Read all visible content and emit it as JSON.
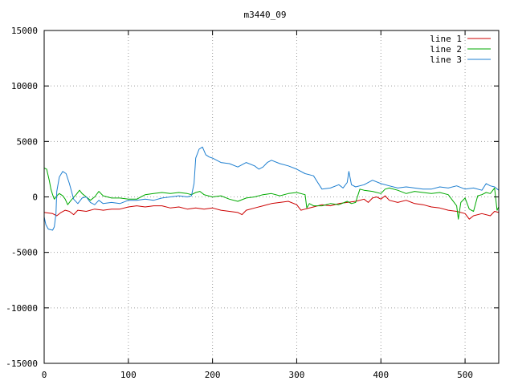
{
  "chart_data": {
    "type": "line",
    "title": "m3440_09",
    "xlabel": "",
    "ylabel": "",
    "xlim": [
      0,
      540
    ],
    "ylim": [
      -15000,
      15000
    ],
    "xticks": [
      0,
      100,
      200,
      300,
      400,
      500
    ],
    "xtick_labels": [
      "0",
      "100",
      "200",
      "300",
      "400",
      "500"
    ],
    "yticks": [
      -15000,
      -10000,
      -5000,
      0,
      5000,
      10000,
      15000
    ],
    "ytick_labels": [
      "-15000",
      "-10000",
      "-5000",
      "0",
      "5000",
      "10000",
      "15000"
    ],
    "grid": true,
    "legend_position": "top-right",
    "series": [
      {
        "name": "line 1",
        "color": "#cc0000",
        "points": [
          [
            0,
            -1400
          ],
          [
            10,
            -1500
          ],
          [
            15,
            -1700
          ],
          [
            20,
            -1400
          ],
          [
            25,
            -1200
          ],
          [
            30,
            -1300
          ],
          [
            35,
            -1600
          ],
          [
            40,
            -1200
          ],
          [
            50,
            -1300
          ],
          [
            60,
            -1100
          ],
          [
            70,
            -1200
          ],
          [
            80,
            -1100
          ],
          [
            90,
            -1100
          ],
          [
            100,
            -900
          ],
          [
            110,
            -800
          ],
          [
            120,
            -900
          ],
          [
            130,
            -800
          ],
          [
            140,
            -800
          ],
          [
            150,
            -1000
          ],
          [
            160,
            -900
          ],
          [
            170,
            -1100
          ],
          [
            180,
            -1000
          ],
          [
            190,
            -1100
          ],
          [
            200,
            -1000
          ],
          [
            210,
            -1200
          ],
          [
            220,
            -1300
          ],
          [
            230,
            -1400
          ],
          [
            235,
            -1600
          ],
          [
            240,
            -1200
          ],
          [
            250,
            -1000
          ],
          [
            260,
            -800
          ],
          [
            270,
            -600
          ],
          [
            280,
            -500
          ],
          [
            290,
            -400
          ],
          [
            300,
            -700
          ],
          [
            305,
            -1200
          ],
          [
            310,
            -1100
          ],
          [
            320,
            -900
          ],
          [
            330,
            -700
          ],
          [
            340,
            -800
          ],
          [
            350,
            -600
          ],
          [
            360,
            -500
          ],
          [
            370,
            -400
          ],
          [
            380,
            -200
          ],
          [
            385,
            -500
          ],
          [
            390,
            -100
          ],
          [
            395,
            0
          ],
          [
            400,
            -200
          ],
          [
            405,
            100
          ],
          [
            410,
            -300
          ],
          [
            420,
            -500
          ],
          [
            430,
            -300
          ],
          [
            440,
            -600
          ],
          [
            450,
            -700
          ],
          [
            460,
            -900
          ],
          [
            470,
            -1000
          ],
          [
            480,
            -1200
          ],
          [
            490,
            -1300
          ],
          [
            500,
            -1500
          ],
          [
            505,
            -2000
          ],
          [
            510,
            -1700
          ],
          [
            520,
            -1500
          ],
          [
            530,
            -1700
          ],
          [
            535,
            -1300
          ],
          [
            540,
            -1400
          ]
        ]
      },
      {
        "name": "line 2",
        "color": "#00aa00",
        "points": [
          [
            0,
            2600
          ],
          [
            3,
            2500
          ],
          [
            6,
            1500
          ],
          [
            8,
            700
          ],
          [
            10,
            200
          ],
          [
            12,
            -200
          ],
          [
            15,
            100
          ],
          [
            18,
            300
          ],
          [
            20,
            200
          ],
          [
            22,
            100
          ],
          [
            25,
            -200
          ],
          [
            28,
            -700
          ],
          [
            32,
            -300
          ],
          [
            38,
            200
          ],
          [
            42,
            600
          ],
          [
            45,
            300
          ],
          [
            50,
            0
          ],
          [
            55,
            -300
          ],
          [
            60,
            0
          ],
          [
            65,
            500
          ],
          [
            70,
            100
          ],
          [
            80,
            -100
          ],
          [
            90,
            -100
          ],
          [
            100,
            -200
          ],
          [
            110,
            -200
          ],
          [
            115,
            0
          ],
          [
            120,
            200
          ],
          [
            130,
            300
          ],
          [
            140,
            400
          ],
          [
            150,
            300
          ],
          [
            160,
            400
          ],
          [
            170,
            300
          ],
          [
            175,
            200
          ],
          [
            180,
            400
          ],
          [
            185,
            500
          ],
          [
            190,
            200
          ],
          [
            200,
            0
          ],
          [
            210,
            100
          ],
          [
            220,
            -200
          ],
          [
            230,
            -400
          ],
          [
            240,
            -100
          ],
          [
            250,
            0
          ],
          [
            260,
            200
          ],
          [
            270,
            300
          ],
          [
            280,
            100
          ],
          [
            290,
            300
          ],
          [
            300,
            400
          ],
          [
            310,
            200
          ],
          [
            312,
            -1000
          ],
          [
            315,
            -600
          ],
          [
            320,
            -800
          ],
          [
            330,
            -800
          ],
          [
            340,
            -600
          ],
          [
            350,
            -700
          ],
          [
            360,
            -400
          ],
          [
            365,
            -600
          ],
          [
            370,
            -500
          ],
          [
            375,
            700
          ],
          [
            380,
            600
          ],
          [
            390,
            500
          ],
          [
            400,
            300
          ],
          [
            405,
            700
          ],
          [
            410,
            800
          ],
          [
            420,
            600
          ],
          [
            430,
            300
          ],
          [
            440,
            500
          ],
          [
            450,
            400
          ],
          [
            460,
            300
          ],
          [
            470,
            400
          ],
          [
            480,
            200
          ],
          [
            485,
            -300
          ],
          [
            490,
            -800
          ],
          [
            492,
            -2000
          ],
          [
            495,
            -500
          ],
          [
            500,
            -100
          ],
          [
            505,
            -1100
          ],
          [
            510,
            -1300
          ],
          [
            515,
            100
          ],
          [
            520,
            200
          ],
          [
            525,
            400
          ],
          [
            530,
            300
          ],
          [
            535,
            800
          ],
          [
            538,
            -1200
          ],
          [
            540,
            -900
          ]
        ]
      },
      {
        "name": "line 3",
        "color": "#1e7fd0",
        "points": [
          [
            0,
            -1800
          ],
          [
            2,
            -2500
          ],
          [
            5,
            -2900
          ],
          [
            10,
            -3000
          ],
          [
            12,
            -2700
          ],
          [
            14,
            -1500
          ],
          [
            15,
            500
          ],
          [
            18,
            1800
          ],
          [
            22,
            2300
          ],
          [
            26,
            2100
          ],
          [
            30,
            1200
          ],
          [
            35,
            -200
          ],
          [
            40,
            -600
          ],
          [
            45,
            -100
          ],
          [
            50,
            0
          ],
          [
            55,
            -500
          ],
          [
            60,
            -700
          ],
          [
            65,
            -300
          ],
          [
            70,
            -600
          ],
          [
            80,
            -500
          ],
          [
            90,
            -600
          ],
          [
            100,
            -300
          ],
          [
            110,
            -300
          ],
          [
            120,
            -200
          ],
          [
            130,
            -300
          ],
          [
            140,
            -100
          ],
          [
            150,
            0
          ],
          [
            160,
            100
          ],
          [
            170,
            0
          ],
          [
            175,
            100
          ],
          [
            178,
            1200
          ],
          [
            180,
            3500
          ],
          [
            184,
            4300
          ],
          [
            188,
            4500
          ],
          [
            192,
            3800
          ],
          [
            196,
            3600
          ],
          [
            200,
            3500
          ],
          [
            210,
            3100
          ],
          [
            220,
            3000
          ],
          [
            230,
            2700
          ],
          [
            240,
            3100
          ],
          [
            250,
            2800
          ],
          [
            255,
            2500
          ],
          [
            260,
            2700
          ],
          [
            265,
            3100
          ],
          [
            270,
            3300
          ],
          [
            280,
            3000
          ],
          [
            290,
            2800
          ],
          [
            300,
            2500
          ],
          [
            310,
            2100
          ],
          [
            320,
            1900
          ],
          [
            325,
            1300
          ],
          [
            330,
            700
          ],
          [
            340,
            800
          ],
          [
            350,
            1100
          ],
          [
            355,
            800
          ],
          [
            360,
            1300
          ],
          [
            362,
            2300
          ],
          [
            365,
            1100
          ],
          [
            370,
            900
          ],
          [
            380,
            1100
          ],
          [
            390,
            1500
          ],
          [
            400,
            1200
          ],
          [
            410,
            1000
          ],
          [
            420,
            800
          ],
          [
            430,
            900
          ],
          [
            440,
            800
          ],
          [
            450,
            700
          ],
          [
            460,
            700
          ],
          [
            470,
            900
          ],
          [
            480,
            800
          ],
          [
            490,
            1000
          ],
          [
            500,
            700
          ],
          [
            510,
            800
          ],
          [
            520,
            600
          ],
          [
            525,
            1200
          ],
          [
            530,
            1000
          ],
          [
            535,
            900
          ],
          [
            540,
            600
          ]
        ]
      }
    ]
  }
}
